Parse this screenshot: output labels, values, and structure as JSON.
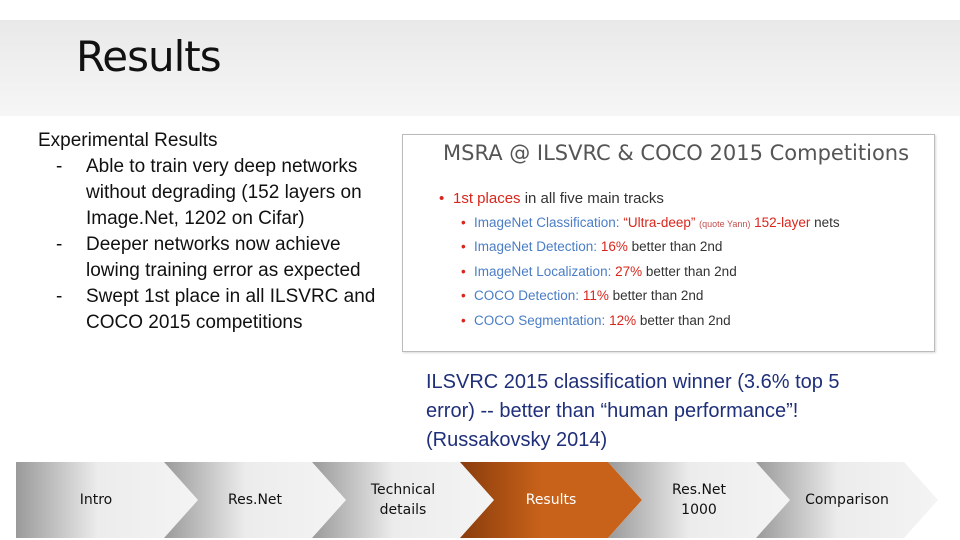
{
  "slide": {
    "title": "Results"
  },
  "left_panel": {
    "heading": "Experimental Results",
    "bullets": [
      "Able to train very deep networks without degrading (152 layers on Image.Net, 1202 on Cifar)",
      "Deeper networks now achieve lowing training error as expected",
      "Swept 1st place in all ILSVRC and COCO 2015 competitions"
    ],
    "bullet_marker": "-"
  },
  "msra_image": {
    "title": "MSRA @ ILSVRC & COCO 2015 Competitions",
    "first_places_red": "1st places",
    "first_places_rest": " in all five main tracks",
    "items": [
      {
        "label": "ImageNet Classification:",
        "quote": "“Ultra-deep”",
        "note": "(quote Yann)",
        "highlight": "152-layer",
        "rest": " nets"
      },
      {
        "label": "ImageNet Detection:",
        "highlight": "16%",
        "rest": " better than 2nd"
      },
      {
        "label": "ImageNet Localization:",
        "highlight": "27%",
        "rest": " better than 2nd"
      },
      {
        "label": "COCO Detection:",
        "highlight": "11%",
        "rest": " better than 2nd"
      },
      {
        "label": "COCO Segmentation:",
        "highlight": "12%",
        "rest": " better than 2nd"
      }
    ],
    "colors": {
      "red": "#d9261c",
      "blue": "#4a7dc6",
      "text": "#333333"
    }
  },
  "caption": "ILSVRC 2015 classification winner (3.6% top 5 error) -- better than “human performance”! (Russakovsky 2014)",
  "nav": {
    "steps": [
      "Intro",
      "Res.Net",
      "Technical\ndetails",
      "Results",
      "Res.Net\n1000",
      "Comparison"
    ],
    "active": "Results",
    "colors": {
      "inactive_dark": "#9a9a9a",
      "inactive_light": "#ececec",
      "active_dark": "#8a3c0c",
      "active_light": "#c8621a",
      "active_text": "#ffffff"
    }
  }
}
